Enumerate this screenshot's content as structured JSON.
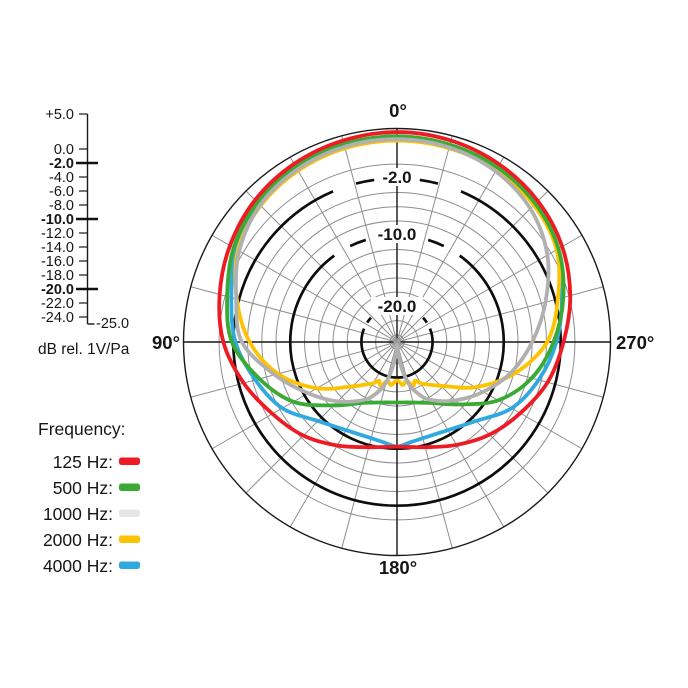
{
  "polar": {
    "angle_labels": {
      "top": "0°",
      "left": "90°",
      "right": "270°",
      "bottom": "180°"
    },
    "ring_labels": {
      "r2": "-2.0",
      "r10": "-10.0",
      "r20": "-20.0"
    }
  },
  "db_scale": {
    "ticks": [
      {
        "label": "+5.0",
        "db": 5,
        "bold": false
      },
      {
        "label": "0.0",
        "db": 0,
        "bold": false
      },
      {
        "label": "-2.0",
        "db": -2,
        "bold": true
      },
      {
        "label": "-4.0",
        "db": -4,
        "bold": false
      },
      {
        "label": "-6.0",
        "db": -6,
        "bold": false
      },
      {
        "label": "-8.0",
        "db": -8,
        "bold": false
      },
      {
        "label": "-10.0",
        "db": -10,
        "bold": true
      },
      {
        "label": "-12.0",
        "db": -12,
        "bold": false
      },
      {
        "label": "-14.0",
        "db": -14,
        "bold": false
      },
      {
        "label": "-16.0",
        "db": -16,
        "bold": false
      },
      {
        "label": "-18.0",
        "db": -18,
        "bold": false
      },
      {
        "label": "-20.0",
        "db": -20,
        "bold": true
      },
      {
        "label": "-22.0",
        "db": -22,
        "bold": false
      },
      {
        "label": "-24.0",
        "db": -24,
        "bold": false
      }
    ],
    "end_label": "-25.0",
    "unit": "dB rel. 1V/Pa"
  },
  "legend": {
    "title": "Frequency:",
    "items": [
      {
        "label": "125 Hz:",
        "swatch": "#ed1c24"
      },
      {
        "label": "500 Hz:",
        "swatch": "#3aaa35"
      },
      {
        "label": "1000 Hz:",
        "swatch": "#e6e6e6"
      },
      {
        "label": "2000 Hz:",
        "swatch": "#fdc300"
      },
      {
        "label": "4000 Hz:",
        "swatch": "#2fa9e0"
      }
    ]
  },
  "chart_data": {
    "type": "line",
    "subtype": "polar-pattern",
    "title": "Microphone polar / directivity pattern",
    "units": "dB rel. 1V/Pa",
    "angle_convention": "0 = front (top), 90 = left, 180 = rear (bottom), 270 = right",
    "radial_range": [
      -25,
      5
    ],
    "radial_ticks_db": [
      0,
      -2,
      -4,
      -6,
      -8,
      -10,
      -12,
      -14,
      -16,
      -18,
      -20,
      -22,
      -24
    ],
    "bold_rings_db": [
      -2,
      -10,
      -20
    ],
    "boundary_db": 5,
    "spoke_step_deg": 15,
    "grid": true,
    "legend_position": "bottom-left",
    "series": [
      {
        "name": "125 Hz",
        "color": "#ed1c24",
        "points": [
          [
            0,
            4.5
          ],
          [
            15,
            4.3
          ],
          [
            30,
            3.9
          ],
          [
            45,
            3.2
          ],
          [
            60,
            2.1
          ],
          [
            75,
            0.8
          ],
          [
            90,
            -0.6
          ],
          [
            105,
            -2.7
          ],
          [
            120,
            -4.8
          ],
          [
            135,
            -6.4
          ],
          [
            150,
            -8.2
          ],
          [
            165,
            -9.7
          ],
          [
            180,
            -10.3
          ],
          [
            195,
            -9.7
          ],
          [
            210,
            -8.3
          ],
          [
            225,
            -6.6
          ],
          [
            240,
            -5.0
          ],
          [
            255,
            -3.1
          ],
          [
            270,
            -1.6
          ],
          [
            285,
            0.2
          ],
          [
            300,
            1.8
          ],
          [
            315,
            3.0
          ],
          [
            330,
            3.8
          ],
          [
            345,
            4.3
          ]
        ]
      },
      {
        "name": "500 Hz",
        "color": "#3aaa35",
        "points": [
          [
            0,
            3.9
          ],
          [
            15,
            3.8
          ],
          [
            30,
            3.4
          ],
          [
            45,
            2.7
          ],
          [
            60,
            1.5
          ],
          [
            75,
            -0.3
          ],
          [
            90,
            -1.8
          ],
          [
            105,
            -5.0
          ],
          [
            120,
            -8.2
          ],
          [
            135,
            -12.4
          ],
          [
            150,
            -15.1
          ],
          [
            165,
            -16.2
          ],
          [
            180,
            -16.5
          ],
          [
            195,
            -16.2
          ],
          [
            210,
            -15.1
          ],
          [
            225,
            -12.6
          ],
          [
            240,
            -8.6
          ],
          [
            255,
            -5.4
          ],
          [
            270,
            -3.0
          ],
          [
            285,
            -0.8
          ],
          [
            300,
            1.2
          ],
          [
            315,
            2.5
          ],
          [
            330,
            3.3
          ],
          [
            345,
            3.7
          ]
        ]
      },
      {
        "name": "1000 Hz",
        "color": "#b0b0b0",
        "points": [
          [
            0,
            3.5
          ],
          [
            15,
            3.4
          ],
          [
            30,
            3.0
          ],
          [
            45,
            2.2
          ],
          [
            60,
            0.6
          ],
          [
            75,
            -1.6
          ],
          [
            90,
            -3.2
          ],
          [
            105,
            -7.2
          ],
          [
            120,
            -10.6
          ],
          [
            135,
            -13.2
          ],
          [
            150,
            -15.6
          ],
          [
            158,
            -17.2
          ],
          [
            164,
            -18.8
          ],
          [
            170,
            -21.3
          ],
          [
            175,
            -23.5
          ],
          [
            180,
            -24.6
          ],
          [
            185,
            -23.5
          ],
          [
            190,
            -21.3
          ],
          [
            196,
            -18.8
          ],
          [
            202,
            -17.2
          ],
          [
            210,
            -15.6
          ],
          [
            225,
            -13.4
          ],
          [
            240,
            -11.0
          ],
          [
            255,
            -8.4
          ],
          [
            270,
            -6.0
          ],
          [
            285,
            -3.4
          ],
          [
            300,
            -0.6
          ],
          [
            315,
            1.5
          ],
          [
            330,
            2.7
          ],
          [
            345,
            3.3
          ]
        ]
      },
      {
        "name": "2000 Hz",
        "color": "#fdc300",
        "points": [
          [
            0,
            3.3
          ],
          [
            15,
            3.2
          ],
          [
            30,
            2.8
          ],
          [
            45,
            2.1
          ],
          [
            60,
            0.8
          ],
          [
            75,
            -1.7
          ],
          [
            90,
            -4.3
          ],
          [
            105,
            -7.7
          ],
          [
            120,
            -12.0
          ],
          [
            135,
            -16.2
          ],
          [
            143,
            -17.5
          ],
          [
            150,
            -18.3
          ],
          [
            155,
            -19.0
          ],
          [
            160,
            -18.4
          ],
          [
            166,
            -19.4
          ],
          [
            172,
            -18.9
          ],
          [
            180,
            -19.6
          ],
          [
            188,
            -18.9
          ],
          [
            194,
            -19.4
          ],
          [
            200,
            -18.4
          ],
          [
            205,
            -19.0
          ],
          [
            210,
            -18.3
          ],
          [
            217,
            -17.5
          ],
          [
            225,
            -16.3
          ],
          [
            240,
            -12.3
          ],
          [
            255,
            -7.9
          ],
          [
            270,
            -3.9
          ],
          [
            285,
            -1.6
          ],
          [
            300,
            0.9
          ],
          [
            315,
            2.2
          ],
          [
            330,
            2.9
          ],
          [
            345,
            3.2
          ]
        ]
      },
      {
        "name": "4000 Hz",
        "color": "#2fa9e0",
        "points": [
          [
            0,
            3.4
          ],
          [
            15,
            3.3
          ],
          [
            30,
            2.9
          ],
          [
            45,
            2.3
          ],
          [
            60,
            1.1
          ],
          [
            75,
            -0.9
          ],
          [
            90,
            -2.3
          ],
          [
            105,
            -4.4
          ],
          [
            120,
            -6.4
          ],
          [
            135,
            -9.3
          ],
          [
            150,
            -10.7
          ],
          [
            165,
            -11.0
          ],
          [
            172,
            -10.8
          ],
          [
            180,
            -10.3
          ],
          [
            188,
            -10.8
          ],
          [
            195,
            -11.0
          ],
          [
            210,
            -10.7
          ],
          [
            225,
            -9.3
          ],
          [
            240,
            -6.4
          ],
          [
            255,
            -4.4
          ],
          [
            270,
            -2.6
          ],
          [
            285,
            -1.0
          ],
          [
            300,
            1.0
          ],
          [
            315,
            2.3
          ],
          [
            330,
            2.9
          ],
          [
            345,
            3.3
          ]
        ]
      }
    ]
  }
}
